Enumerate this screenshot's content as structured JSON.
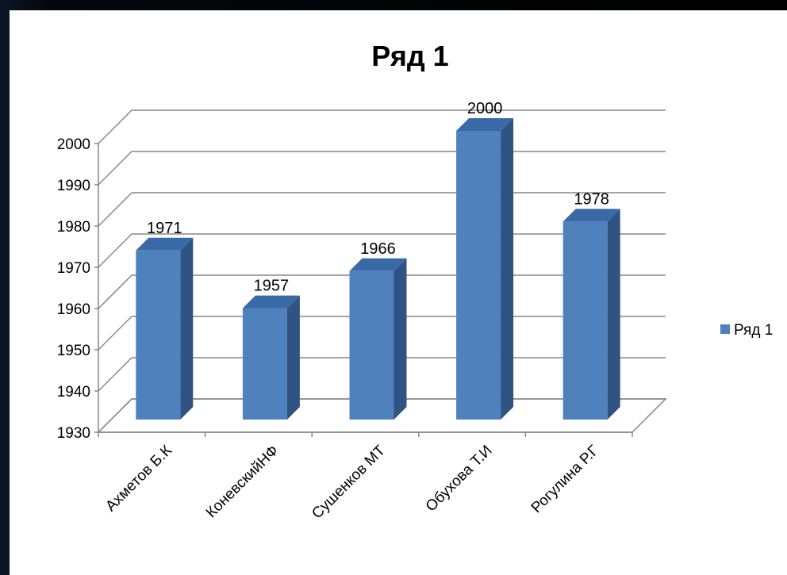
{
  "chart_data": {
    "type": "bar",
    "title": "Ряд 1",
    "categories": [
      "Ахметов Б.К",
      "КоневскийНФ",
      "Сушенков МТ",
      "Обухова Т.И",
      "Рогулина Р.Г"
    ],
    "series": [
      {
        "name": "Ряд 1",
        "values": [
          1971,
          1957,
          1966,
          2000,
          1978
        ],
        "color": "#4f81bd"
      }
    ],
    "ylim": [
      1930,
      2000
    ],
    "yticks": [
      1930,
      1940,
      1950,
      1960,
      1970,
      1980,
      1990,
      2000
    ],
    "grid": true,
    "legend": "right",
    "style": "3d-column",
    "xlabel": "",
    "ylabel": ""
  }
}
